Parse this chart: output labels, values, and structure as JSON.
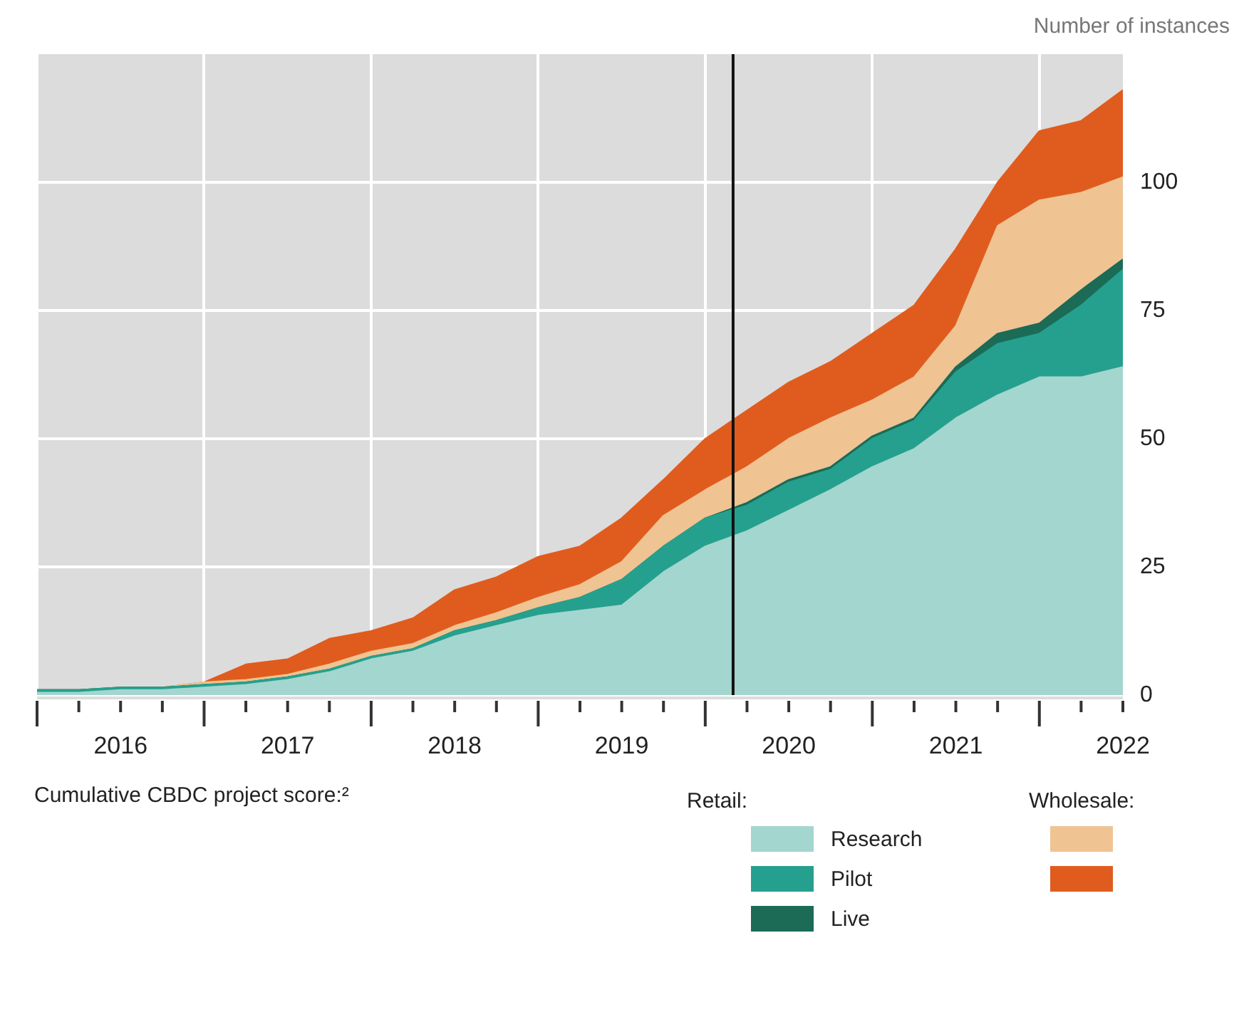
{
  "chart_data": {
    "type": "area",
    "stacked": true,
    "ylabel": "Number of instances",
    "legend_title": "Cumulative CBDC project score:²",
    "annotations": [
      "Retail:",
      "Wholesale:"
    ],
    "x": [
      "2016-01",
      "2016-04",
      "2016-07",
      "2016-10",
      "2017-01",
      "2017-04",
      "2017-07",
      "2017-10",
      "2018-01",
      "2018-04",
      "2018-07",
      "2018-10",
      "2019-01",
      "2019-04",
      "2019-07",
      "2019-10",
      "2020-01",
      "2020-04",
      "2020-07",
      "2020-10",
      "2021-01",
      "2021-04",
      "2021-07",
      "2021-10",
      "2022-01",
      "2022-04",
      "2022-07"
    ],
    "series": [
      {
        "name": "Research",
        "color": "#a3d6cf",
        "values": [
          0.5,
          0.5,
          1,
          1,
          1.5,
          2,
          3,
          4.5,
          7,
          8.5,
          11.5,
          13.5,
          15.5,
          16.5,
          17.5,
          24,
          29,
          32,
          36,
          40,
          44.5,
          48,
          54,
          58.5,
          62,
          62,
          64
        ]
      },
      {
        "name": "Pilot",
        "color": "#25a08e",
        "values": [
          0.5,
          0.5,
          0.5,
          0.5,
          0.5,
          0.5,
          0.5,
          0.5,
          0.5,
          0.5,
          1,
          1,
          1.5,
          2.5,
          5,
          5,
          5.5,
          5,
          5.5,
          4,
          5.5,
          5.5,
          9,
          10,
          8.5,
          14,
          19
        ]
      },
      {
        "name": "Live",
        "color": "#1b6b57",
        "values": [
          0,
          0,
          0,
          0,
          0,
          0,
          0,
          0,
          0,
          0,
          0,
          0,
          0,
          0,
          0,
          0,
          0,
          0.5,
          0.5,
          0.5,
          0.5,
          0.5,
          1,
          2,
          2,
          3,
          2
        ]
      },
      {
        "color": "#efc392",
        "values": [
          0,
          0,
          0,
          0,
          0.5,
          0.5,
          0.5,
          1,
          1,
          1,
          1,
          1.5,
          2,
          2.5,
          3.5,
          6,
          5.5,
          7,
          8,
          9.5,
          7,
          8,
          8,
          21,
          24,
          19,
          16
        ]
      },
      {
        "color": "#e05c1e",
        "values": [
          0,
          0,
          0,
          0,
          0,
          3,
          3,
          5,
          4,
          5,
          7,
          7,
          8,
          7.5,
          8.5,
          7,
          10,
          11,
          11,
          11,
          13,
          14,
          15,
          8.5,
          13.5,
          14,
          17
        ]
      }
    ],
    "xlim": [
      "2016-01",
      "2022-07"
    ],
    "xticks": [
      {
        "value": "2016-01",
        "label": null
      },
      {
        "value": "2016-04",
        "label": null
      },
      {
        "value": "2016-07",
        "label": "2016"
      },
      {
        "value": "2016-10",
        "label": null
      },
      {
        "value": "2017-01",
        "label": null
      },
      {
        "value": "2017-04",
        "label": null
      },
      {
        "value": "2017-07",
        "label": "2017"
      },
      {
        "value": "2017-10",
        "label": null
      },
      {
        "value": "2018-01",
        "label": null
      },
      {
        "value": "2018-04",
        "label": null
      },
      {
        "value": "2018-07",
        "label": "2018"
      },
      {
        "value": "2018-10",
        "label": null
      },
      {
        "value": "2019-01",
        "label": null
      },
      {
        "value": "2019-04",
        "label": null
      },
      {
        "value": "2019-07",
        "label": "2019"
      },
      {
        "value": "2019-10",
        "label": null
      },
      {
        "value": "2020-01",
        "label": null
      },
      {
        "value": "2020-04",
        "label": null
      },
      {
        "value": "2020-07",
        "label": "2020"
      },
      {
        "value": "2020-10",
        "label": null
      },
      {
        "value": "2021-01",
        "label": null
      },
      {
        "value": "2021-04",
        "label": null
      },
      {
        "value": "2021-07",
        "label": "2021"
      },
      {
        "value": "2021-10",
        "label": null
      },
      {
        "value": "2022-01",
        "label": null
      },
      {
        "value": "2022-04",
        "label": null
      },
      {
        "value": "2022-07",
        "label": "2022"
      }
    ],
    "ylim": [
      0,
      125
    ],
    "yticks": [
      0,
      25,
      50,
      75,
      100
    ],
    "ref_lines": [
      {
        "axis": "x",
        "value": "2020-03",
        "color": "#111111"
      }
    ],
    "grid": true,
    "legend": "bottom right"
  }
}
